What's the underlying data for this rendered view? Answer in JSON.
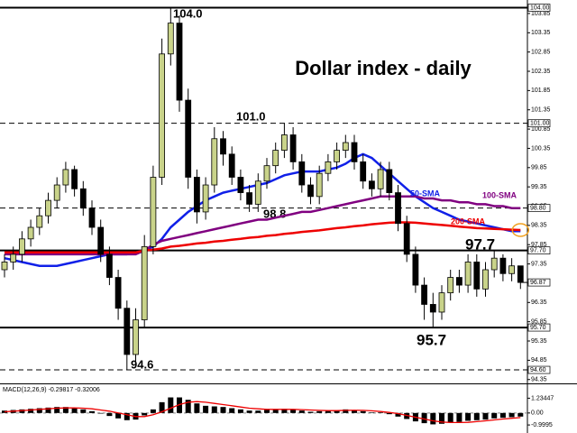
{
  "chart_data": [
    {
      "type": "candlestick",
      "title": "Dollar index - daily",
      "open": [
        97.2,
        97.4,
        97.6,
        98.0,
        98.3,
        98.6,
        99.0,
        99.4,
        99.8,
        99.3,
        98.8,
        98.3,
        97.6,
        97.0,
        96.2,
        95.0,
        95.9,
        97.8,
        99.6,
        102.8,
        103.6,
        101.6,
        99.6,
        98.7,
        99.4,
        100.6,
        100.2,
        99.6,
        99.2,
        98.9,
        99.5,
        99.9,
        100.3,
        100.7,
        100.0,
        99.4,
        99.1,
        99.7,
        100.0,
        100.3,
        100.5,
        100.0,
        99.5,
        99.3,
        99.8,
        99.2,
        98.4,
        97.6,
        96.8,
        96.3,
        96.1,
        96.6,
        97.0,
        96.8,
        97.4,
        96.7,
        97.2,
        97.5,
        97.1,
        97.3
      ],
      "high": [
        97.6,
        97.8,
        98.2,
        98.5,
        98.8,
        99.2,
        99.6,
        100.0,
        99.9,
        99.5,
        99.0,
        98.5,
        97.8,
        97.2,
        96.4,
        96.2,
        98.1,
        99.9,
        103.2,
        104.0,
        103.8,
        101.9,
        99.8,
        99.6,
        100.9,
        100.8,
        100.4,
        99.8,
        99.4,
        99.7,
        100.1,
        100.5,
        101.0,
        100.9,
        100.2,
        99.6,
        99.9,
        100.2,
        100.5,
        100.7,
        100.7,
        100.2,
        99.7,
        100.0,
        100.0,
        99.4,
        98.6,
        97.8,
        97.0,
        96.6,
        96.8,
        97.2,
        97.2,
        97.6,
        97.6,
        97.4,
        97.7,
        97.6,
        97.5,
        97.3
      ],
      "low": [
        97.0,
        97.2,
        97.4,
        97.8,
        98.1,
        98.4,
        98.8,
        99.2,
        99.1,
        98.6,
        98.1,
        97.4,
        96.8,
        95.9,
        94.6,
        94.8,
        95.7,
        97.6,
        99.4,
        102.5,
        101.3,
        99.3,
        98.4,
        98.5,
        99.2,
        99.9,
        99.4,
        99.0,
        98.7,
        98.7,
        99.3,
        99.7,
        100.1,
        99.8,
        99.2,
        98.9,
        98.9,
        99.5,
        99.8,
        100.1,
        99.8,
        99.3,
        99.1,
        99.1,
        99.0,
        98.2,
        97.4,
        96.6,
        95.9,
        95.7,
        95.9,
        96.4,
        96.6,
        96.6,
        96.5,
        96.5,
        97.0,
        96.9,
        96.9,
        96.7
      ],
      "close": [
        97.4,
        97.6,
        98.0,
        98.3,
        98.6,
        99.0,
        99.4,
        99.8,
        99.3,
        98.8,
        98.3,
        97.6,
        97.0,
        96.2,
        95.0,
        95.9,
        97.8,
        99.6,
        102.8,
        103.6,
        101.6,
        99.6,
        98.7,
        99.4,
        100.6,
        100.2,
        99.6,
        99.2,
        98.9,
        99.5,
        99.9,
        100.3,
        100.7,
        100.0,
        99.4,
        99.1,
        99.7,
        100.0,
        100.3,
        100.5,
        100.0,
        99.5,
        99.3,
        99.8,
        99.2,
        98.4,
        97.6,
        96.8,
        96.3,
        96.1,
        96.6,
        97.0,
        96.8,
        97.4,
        96.7,
        97.2,
        97.5,
        97.1,
        97.3,
        96.87
      ],
      "up_color": "#c9d38a",
      "down_color": "#000000",
      "ylim": [
        94.25,
        104.2
      ],
      "yticks": [
        103.85,
        103.35,
        102.85,
        102.35,
        101.85,
        101.35,
        100.85,
        100.35,
        99.85,
        99.35,
        98.85,
        98.35,
        97.85,
        97.35,
        96.85,
        96.35,
        95.85,
        95.35,
        94.85,
        94.35
      ],
      "levels": [
        {
          "value": 104.0,
          "label": "104.00",
          "annotation": "104.0",
          "style": "solid"
        },
        {
          "value": 101.0,
          "label": "101.00",
          "annotation": "101.0",
          "style": "dashed"
        },
        {
          "value": 98.8,
          "label": "98.80",
          "annotation": "98.8",
          "style": "dashed"
        },
        {
          "value": 97.7,
          "label": "97.70",
          "annotation": "97.7",
          "style": "solid"
        },
        {
          "value": 95.7,
          "label": "95.70",
          "annotation": "95.7",
          "style": "solid"
        },
        {
          "value": 94.6,
          "label": "94.60",
          "annotation": "94.6",
          "style": "dashed"
        }
      ],
      "current": {
        "value": 96.87,
        "label": "96.87"
      },
      "series": [
        {
          "name": "50-SMA",
          "color": "#1020e8",
          "values": [
            97.5,
            97.45,
            97.4,
            97.35,
            97.3,
            97.3,
            97.3,
            97.35,
            97.4,
            97.45,
            97.5,
            97.55,
            97.6,
            97.6,
            97.6,
            97.65,
            97.7,
            97.8,
            98.0,
            98.3,
            98.5,
            98.7,
            98.85,
            99.0,
            99.1,
            99.2,
            99.25,
            99.3,
            99.35,
            99.4,
            99.45,
            99.55,
            99.65,
            99.7,
            99.75,
            99.75,
            99.75,
            99.8,
            99.85,
            99.95,
            100.1,
            100.2,
            100.1,
            99.9,
            99.7,
            99.5,
            99.3,
            99.1,
            98.95,
            98.8,
            98.7,
            98.6,
            98.5,
            98.45,
            98.4,
            98.35,
            98.3,
            98.25,
            98.2,
            98.2
          ]
        },
        {
          "name": "100-SMA",
          "color": "#800080",
          "values": [
            97.6,
            97.6,
            97.6,
            97.6,
            97.6,
            97.6,
            97.6,
            97.6,
            97.6,
            97.6,
            97.6,
            97.6,
            97.6,
            97.6,
            97.6,
            97.6,
            97.7,
            97.85,
            97.95,
            98.0,
            98.05,
            98.1,
            98.15,
            98.2,
            98.25,
            98.3,
            98.35,
            98.4,
            98.45,
            98.5,
            98.5,
            98.55,
            98.6,
            98.65,
            98.7,
            98.7,
            98.75,
            98.8,
            98.85,
            98.9,
            98.95,
            99.0,
            99.05,
            99.1,
            99.1,
            99.1,
            99.1,
            99.1,
            99.05,
            99.05,
            99.0,
            99.0,
            98.95,
            98.95,
            98.9,
            98.9,
            98.85,
            98.85,
            98.8,
            98.8
          ]
        },
        {
          "name": "200-SMA",
          "color": "#ee0000",
          "values": [
            97.65,
            97.65,
            97.65,
            97.65,
            97.65,
            97.65,
            97.65,
            97.65,
            97.65,
            97.65,
            97.65,
            97.65,
            97.65,
            97.65,
            97.65,
            97.65,
            97.7,
            97.72,
            97.75,
            97.8,
            97.82,
            97.85,
            97.88,
            97.9,
            97.93,
            97.95,
            97.98,
            98.0,
            98.03,
            98.05,
            98.08,
            98.1,
            98.13,
            98.15,
            98.18,
            98.2,
            98.22,
            98.25,
            98.28,
            98.3,
            98.33,
            98.35,
            98.38,
            98.4,
            98.42,
            98.43,
            98.43,
            98.42,
            98.4,
            98.38,
            98.36,
            98.34,
            98.32,
            98.3,
            98.28,
            98.27,
            98.26,
            98.25,
            98.24,
            98.23
          ]
        }
      ]
    },
    {
      "type": "macd",
      "title": "MACD(12,26,9) -0.29817 -0.32006",
      "histogram": [
        0.2,
        0.25,
        0.3,
        0.35,
        0.4,
        0.45,
        0.5,
        0.5,
        0.4,
        0.3,
        0.15,
        -0.05,
        -0.25,
        -0.45,
        -0.6,
        -0.55,
        -0.2,
        0.3,
        0.9,
        1.3,
        1.3,
        1.1,
        0.8,
        0.6,
        0.55,
        0.5,
        0.4,
        0.3,
        0.2,
        0.2,
        0.25,
        0.3,
        0.35,
        0.3,
        0.2,
        0.1,
        0.15,
        0.2,
        0.25,
        0.3,
        0.25,
        0.15,
        0.05,
        0.05,
        -0.1,
        -0.3,
        -0.5,
        -0.7,
        -0.85,
        -0.95,
        -0.9,
        -0.8,
        -0.75,
        -0.65,
        -0.6,
        -0.55,
        -0.45,
        -0.4,
        -0.35,
        -0.3
      ],
      "signal": [
        0.1,
        0.15,
        0.2,
        0.25,
        0.3,
        0.35,
        0.4,
        0.42,
        0.42,
        0.4,
        0.35,
        0.25,
        0.15,
        0.0,
        -0.15,
        -0.3,
        -0.3,
        -0.15,
        0.1,
        0.4,
        0.7,
        0.9,
        0.95,
        0.9,
        0.8,
        0.7,
        0.6,
        0.5,
        0.4,
        0.35,
        0.3,
        0.3,
        0.3,
        0.3,
        0.28,
        0.25,
        0.22,
        0.2,
        0.2,
        0.22,
        0.23,
        0.22,
        0.18,
        0.12,
        0.05,
        -0.05,
        -0.2,
        -0.35,
        -0.5,
        -0.65,
        -0.75,
        -0.8,
        -0.8,
        -0.78,
        -0.72,
        -0.65,
        -0.58,
        -0.5,
        -0.44,
        -0.38
      ],
      "histogram_color": "#000000",
      "signal_color": "#ee0000",
      "ylim": [
        -1.67,
        2.32
      ],
      "yticks": [
        1.23447,
        {
          "value": 0,
          "label": "0.00"
        },
        {
          "value": -0.9995,
          "label": "-0.9995"
        }
      ]
    }
  ]
}
